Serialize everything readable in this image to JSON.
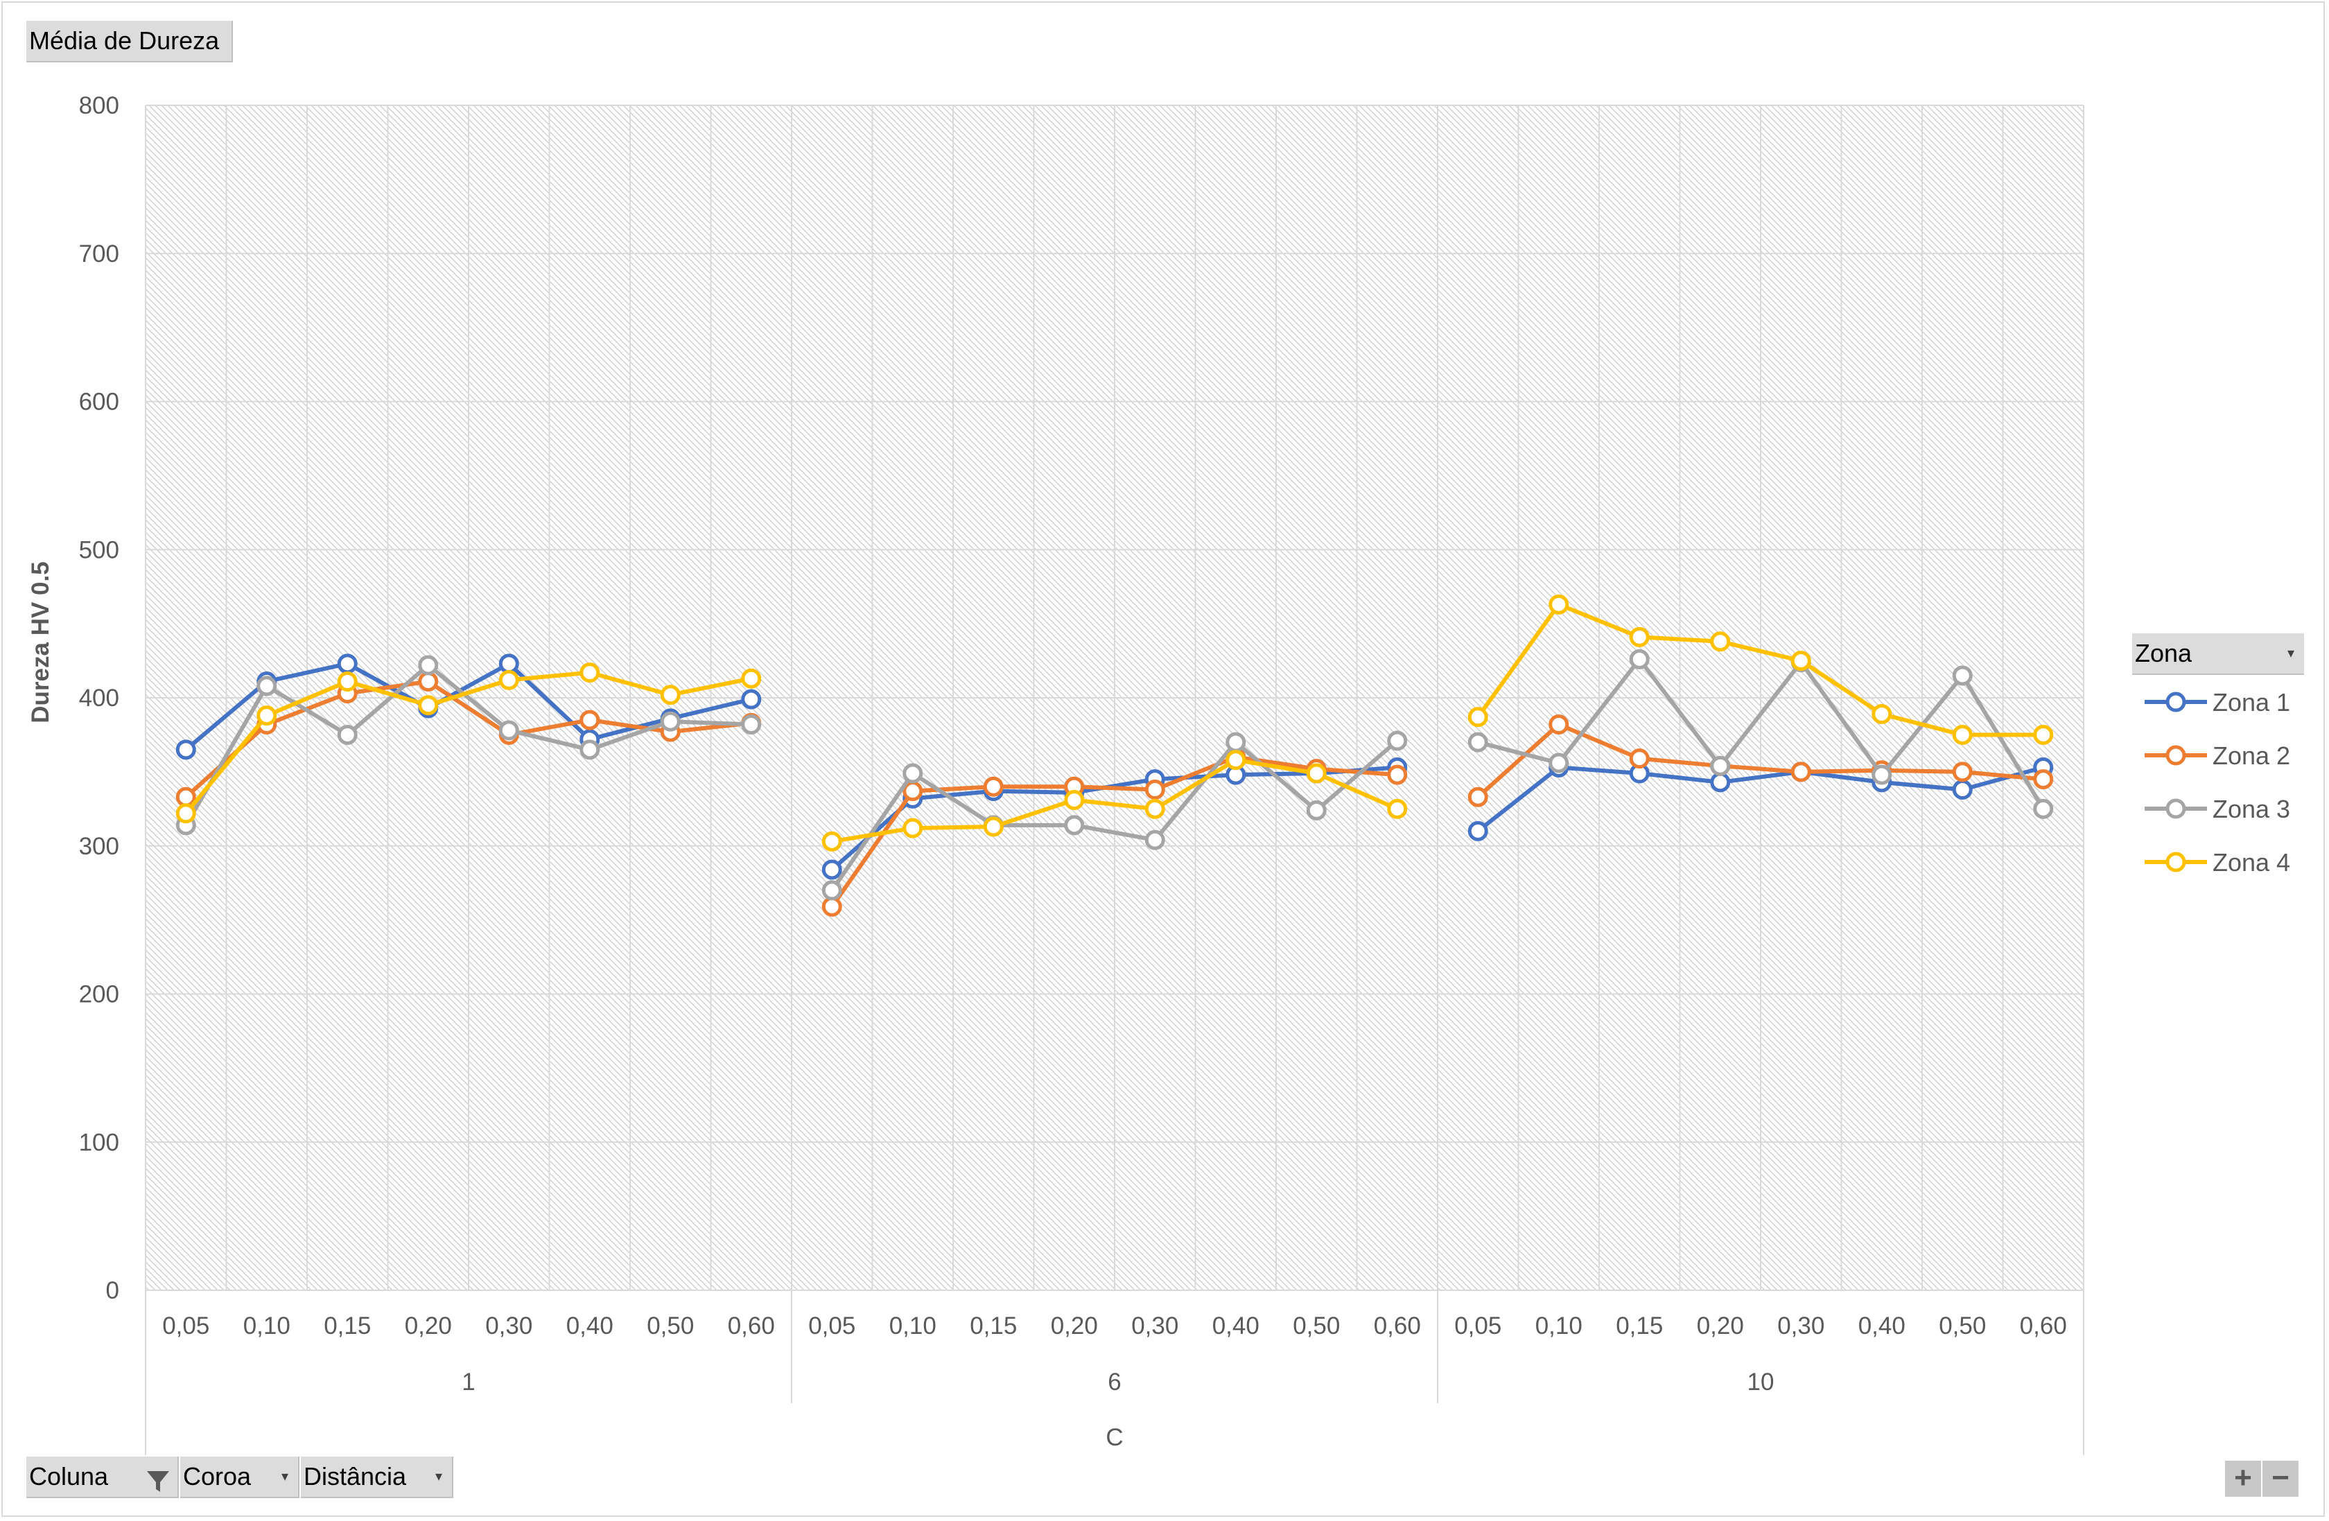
{
  "pivot": {
    "value_button": "Média de Dureza",
    "legend_field": "Zona",
    "axis_fields": [
      {
        "label": "Coluna",
        "icon": "filter-icon"
      },
      {
        "label": "Coroa",
        "icon": "dropdown-icon"
      },
      {
        "label": "Distância",
        "icon": "dropdown-icon"
      }
    ],
    "zoom_plus": "+",
    "zoom_minus": "−"
  },
  "chart_data": {
    "type": "line",
    "ylabel": "Dureza HV 0.5",
    "xlabel": "C",
    "ylim": [
      0,
      800
    ],
    "yticks": [
      0,
      100,
      200,
      300,
      400,
      500,
      600,
      700,
      800
    ],
    "grid": true,
    "legend_position": "right",
    "groups": [
      "1",
      "6",
      "10"
    ],
    "categories": [
      "0,05",
      "0,10",
      "0,15",
      "0,20",
      "0,30",
      "0,40",
      "0,50",
      "0,60"
    ],
    "series": [
      {
        "name": "Zona 1",
        "color": "#4472c4",
        "values": [
          [
            365,
            411,
            423,
            393,
            423,
            372,
            386,
            399
          ],
          [
            284,
            332,
            337,
            336,
            345,
            348,
            349,
            353
          ],
          [
            310,
            353,
            349,
            343,
            350,
            343,
            338,
            353
          ]
        ]
      },
      {
        "name": "Zona 2",
        "color": "#ed7d31",
        "values": [
          [
            333,
            382,
            403,
            411,
            375,
            385,
            377,
            383
          ],
          [
            259,
            337,
            340,
            340,
            338,
            360,
            352,
            348
          ],
          [
            333,
            382,
            359,
            354,
            350,
            351,
            350,
            345
          ]
        ]
      },
      {
        "name": "Zona 3",
        "color": "#a5a5a5",
        "values": [
          [
            314,
            408,
            375,
            422,
            378,
            365,
            384,
            382
          ],
          [
            270,
            349,
            314,
            314,
            304,
            370,
            324,
            371
          ],
          [
            370,
            356,
            426,
            354,
            424,
            348,
            415,
            325
          ]
        ]
      },
      {
        "name": "Zona 4",
        "color": "#ffc000",
        "values": [
          [
            322,
            388,
            411,
            395,
            412,
            417,
            402,
            413
          ],
          [
            303,
            312,
            313,
            331,
            325,
            358,
            349,
            325
          ],
          [
            387,
            463,
            441,
            438,
            425,
            389,
            375,
            375
          ]
        ]
      }
    ]
  }
}
